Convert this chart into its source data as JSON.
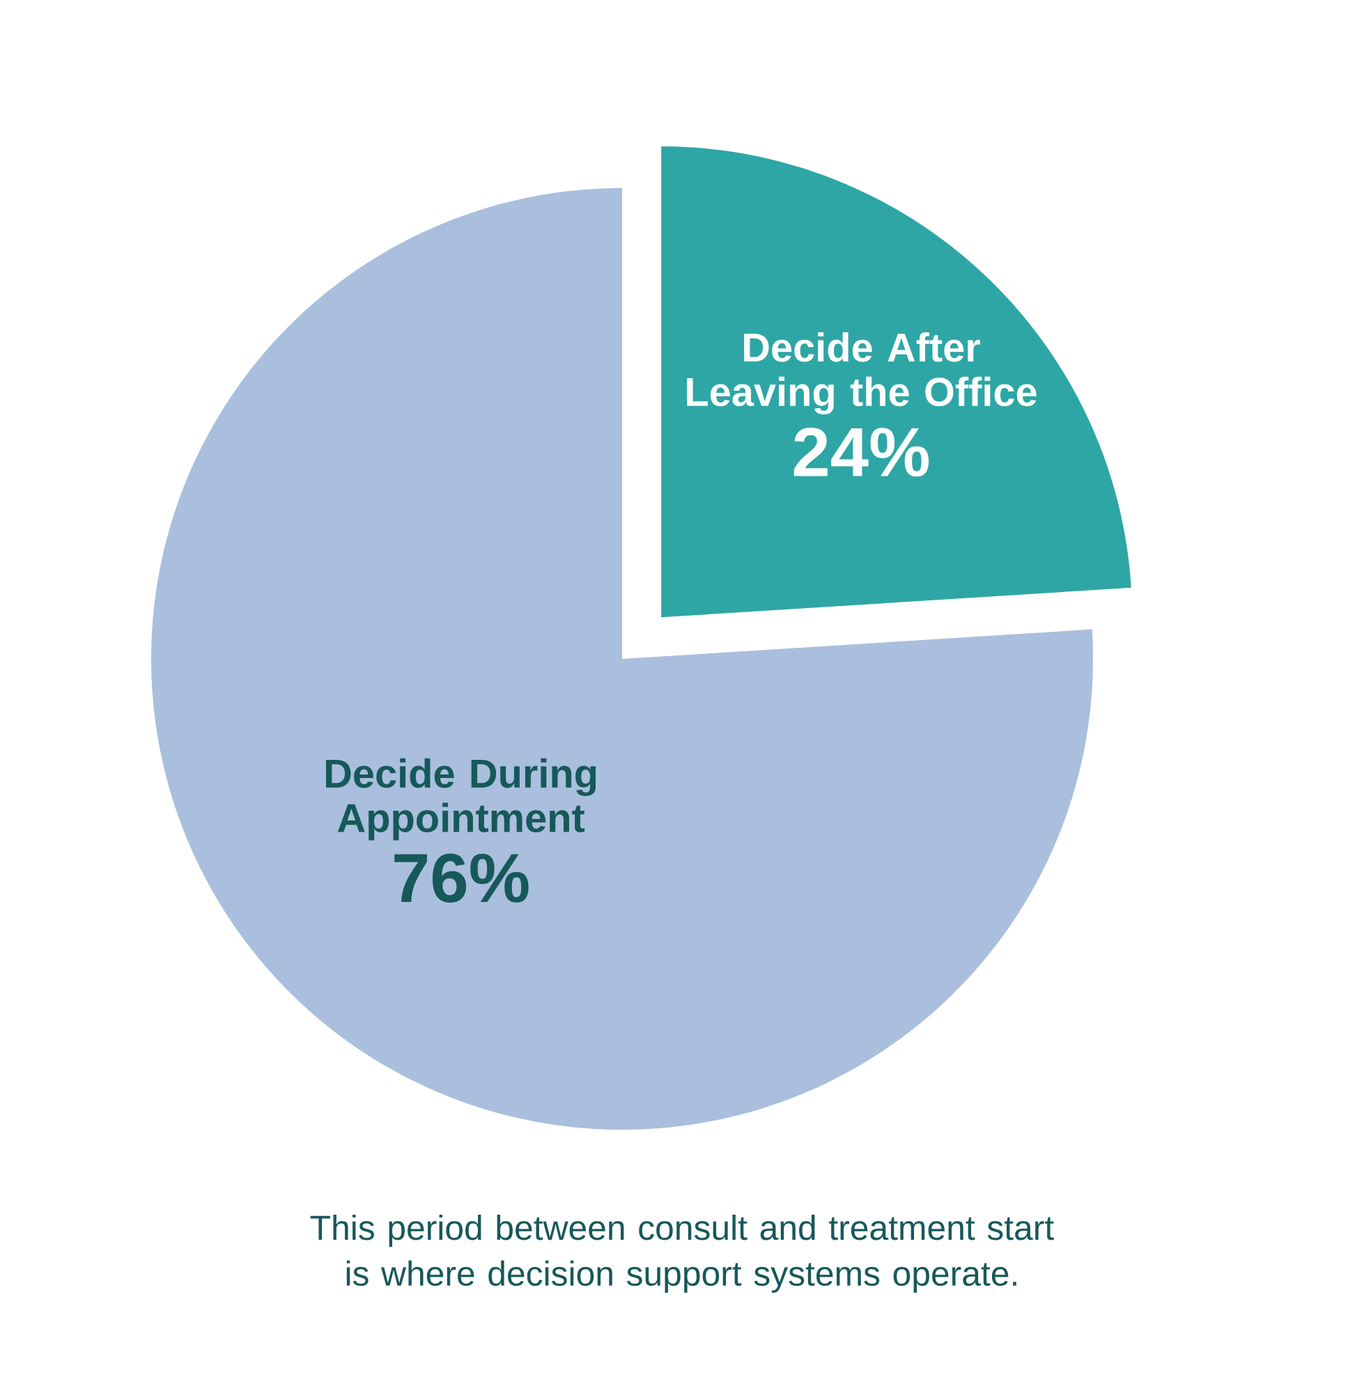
{
  "chart_data": {
    "type": "pie",
    "categories": [
      "Decide After Leaving the Office",
      "Decide During Appointment"
    ],
    "values": [
      24,
      76
    ],
    "colors": [
      "#2ea6a5",
      "#a9bfdd"
    ],
    "value_labels": [
      "24%",
      "76%"
    ],
    "annotations": [
      "This period between consult and treatment start is where decision support systems operate."
    ]
  }
}
